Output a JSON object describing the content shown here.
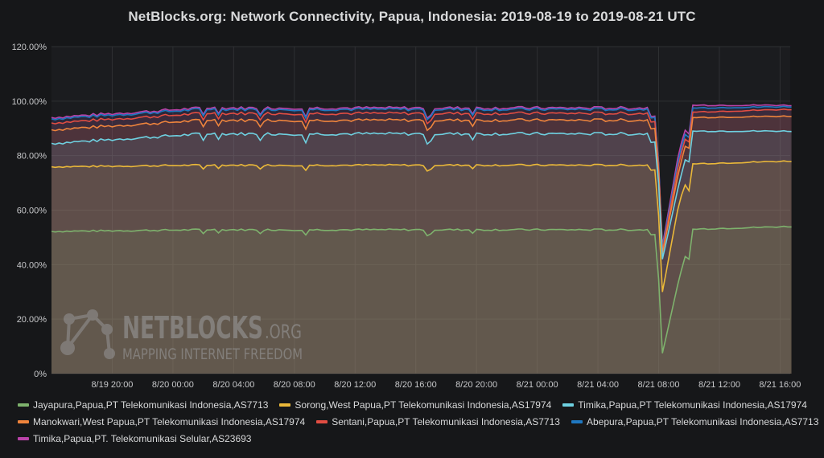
{
  "chart_data": {
    "type": "area",
    "title": "NetBlocks.org: Network Connectivity, Papua, Indonesia: 2019-08-19 to 2019-08-21 UTC",
    "yticks": [
      "0%",
      "20.00%",
      "40.00%",
      "60.00%",
      "80.00%",
      "100.00%",
      "120.00%"
    ],
    "ylim": [
      0,
      120
    ],
    "xticks": [
      "8/19 20:00",
      "8/20 00:00",
      "8/20 04:00",
      "8/20 08:00",
      "8/20 12:00",
      "8/20 16:00",
      "8/20 20:00",
      "8/21 00:00",
      "8/21 04:00",
      "8/21 08:00",
      "8/21 12:00",
      "8/21 16:00"
    ],
    "xlim": [
      "8/19 16:00",
      "8/21 16:40"
    ],
    "grid": true,
    "legend_position": "bottom",
    "event": {
      "drop_start": "8/21 07:50",
      "drop_end": "8/21 08:15",
      "recovery": "8/21 10:15"
    },
    "series": [
      {
        "name": "Jayapura,Papua,PT Telekomunikasi Indonesia,AS7713",
        "color": "#7eb26d",
        "baseline": 52.8,
        "dip": 7.5,
        "rise1": 35,
        "peak": 53,
        "final": 54
      },
      {
        "name": "Sorong,West Papua,PT Telekomunikasi Indonesia,AS17974",
        "color": "#eab839",
        "baseline": 76.5,
        "dip": 30,
        "rise1": 63,
        "peak": 77,
        "final": 78
      },
      {
        "name": "Timika,Papua,PT Telekomunikasi Indonesia,AS17974",
        "color": "#6ed0e0",
        "baseline": 88,
        "dip": 42,
        "rise1": 70,
        "peak": 89,
        "final": 89
      },
      {
        "name": "Manokwari,West Papua,PT Telekomunikasi Indonesia,AS17974",
        "color": "#ef843c",
        "baseline": 93,
        "dip": 44,
        "rise1": 75,
        "peak": 94,
        "final": 94.5
      },
      {
        "name": "Sentani,Papua,PT Telekomunikasi Indonesia,AS7713",
        "color": "#e24d42",
        "baseline": 95.5,
        "dip": 45,
        "rise1": 78,
        "peak": 96,
        "final": 97
      },
      {
        "name": "Abepura,Papua,PT Telekomunikasi Indonesia,AS7713",
        "color": "#1f78c1",
        "baseline": 97,
        "dip": 46,
        "rise1": 80,
        "peak": 97.5,
        "final": 98
      },
      {
        "name": "Timika,Papua,PT. Telekomunikasi Selular,AS23693",
        "color": "#ba43a9",
        "baseline": 97.5,
        "dip": 47,
        "rise1": 82,
        "peak": 98.5,
        "final": 98.5
      }
    ]
  },
  "watermark": {
    "brand": "NETBLOCKS",
    "suffix": ".ORG",
    "tagline": "MAPPING INTERNET FREEDOM"
  }
}
